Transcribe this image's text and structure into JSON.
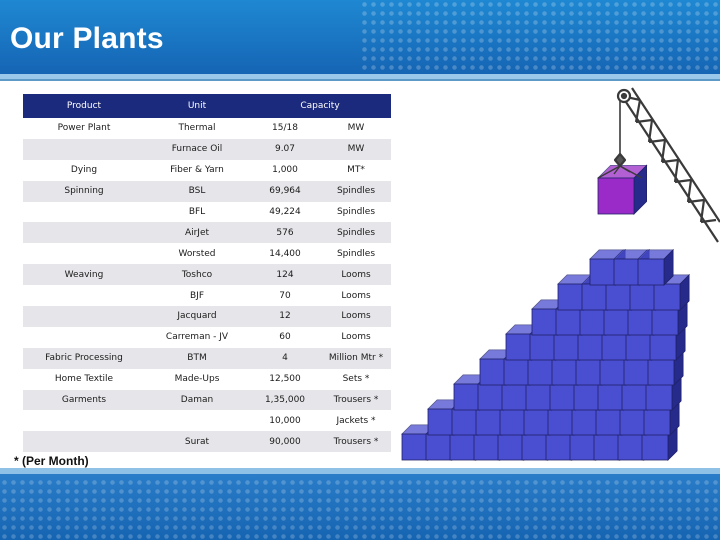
{
  "header": {
    "title": "Our Plants"
  },
  "table": {
    "headers": {
      "product": "Product",
      "unit": "Unit",
      "capacity": "Capacity"
    },
    "rows": [
      {
        "product": "Power Plant",
        "unit": "Thermal",
        "capacity": "15/18",
        "capacity_unit": "MW"
      },
      {
        "product": "",
        "unit": "Furnace Oil",
        "capacity": "9.07",
        "capacity_unit": "MW"
      },
      {
        "product": "Dying",
        "unit": "Fiber & Yarn",
        "capacity": "1,000",
        "capacity_unit": "MT*"
      },
      {
        "product": "Spinning",
        "unit": "BSL",
        "capacity": "69,964",
        "capacity_unit": "Spindles"
      },
      {
        "product": "",
        "unit": "BFL",
        "capacity": "49,224",
        "capacity_unit": "Spindles"
      },
      {
        "product": "",
        "unit": "AirJet",
        "capacity": "576",
        "capacity_unit": "Spindles"
      },
      {
        "product": "",
        "unit": "Worsted",
        "capacity": "14,400",
        "capacity_unit": "Spindles"
      },
      {
        "product": "Weaving",
        "unit": "Toshco",
        "capacity": "124",
        "capacity_unit": "Looms"
      },
      {
        "product": "",
        "unit": "BJF",
        "capacity": "70",
        "capacity_unit": "Looms"
      },
      {
        "product": "",
        "unit": "Jacquard",
        "capacity": "12",
        "capacity_unit": "Looms"
      },
      {
        "product": "",
        "unit": "Carreman - JV",
        "capacity": "60",
        "capacity_unit": "Looms"
      },
      {
        "product": "Fabric Processing",
        "unit": "BTM",
        "capacity": "4",
        "capacity_unit": "Million Mtr *"
      },
      {
        "product": "Home Textile",
        "unit": "Made-Ups",
        "capacity": "12,500",
        "capacity_unit": "Sets *"
      },
      {
        "product": "Garments",
        "unit": "Daman",
        "capacity": "1,35,000",
        "capacity_unit": "Trousers *"
      },
      {
        "product": "",
        "unit": "",
        "capacity": "10,000",
        "capacity_unit": "Jackets *"
      },
      {
        "product": "",
        "unit": "Surat",
        "capacity": "90,000",
        "capacity_unit": "Trousers *"
      }
    ]
  },
  "footnote": "* (Per Month)",
  "colors": {
    "header_blue": "#1b74c4",
    "table_header": "#1c2a7e",
    "value_red": "#c8161d",
    "cube_blue": "#4a4ed0",
    "cube_highlight": "#9a2bc8"
  },
  "illustration": {
    "icon": "crane-stacking-cubes-icon"
  }
}
